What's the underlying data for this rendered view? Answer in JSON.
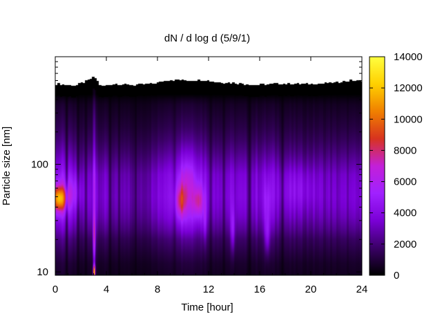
{
  "chart_data": {
    "type": "heatmap",
    "title": "dN / d log d (5/9/1)",
    "xlabel": "Time [hour]",
    "ylabel": "Particle size [nm]",
    "x_range": [
      0,
      24
    ],
    "x_ticks": [
      0,
      4,
      8,
      12,
      16,
      20,
      24
    ],
    "y_scale": "log",
    "y_range": [
      9.3,
      1000
    ],
    "y_ticks": [
      10,
      100
    ],
    "colorbar": {
      "range": [
        0,
        14000
      ],
      "ticks": [
        0,
        2000,
        4000,
        6000,
        8000,
        10000,
        12000,
        14000
      ],
      "colormap": [
        "#000000",
        "#3a0066",
        "#7a00d6",
        "#a021ff",
        "#c320d8",
        "#d7331f",
        "#f08000",
        "#ffd000",
        "#ffff40"
      ]
    },
    "grid": false,
    "no_data_color": "#ffffff",
    "upper_cutoff_nm": {
      "hours": [
        0,
        1.5,
        2.5,
        3.0,
        3.5,
        4.5,
        6.0,
        7.5,
        8.5,
        9.5,
        10.5,
        11.5,
        12.5,
        14.0,
        15.5,
        17.0,
        18.5,
        20.0,
        21.5,
        23.0,
        24.0
      ],
      "values": [
        560,
        540,
        600,
        650,
        530,
        560,
        545,
        560,
        600,
        610,
        600,
        610,
        580,
        570,
        545,
        560,
        560,
        560,
        570,
        600,
        600
      ]
    },
    "bulk_rows": {
      "diameters_nm": [
        9.3,
        12,
        15,
        20,
        25,
        32,
        40,
        50,
        63,
        80,
        100,
        130,
        170,
        220,
        290,
        360,
        400,
        450,
        700
      ],
      "values": [
        600,
        800,
        1200,
        1800,
        2600,
        3300,
        3700,
        3900,
        3800,
        3600,
        3000,
        2300,
        1700,
        1250,
        900,
        650,
        400,
        0,
        0
      ]
    },
    "time_modulation": {
      "hours": [
        0,
        1,
        2,
        3,
        4,
        5,
        6,
        7,
        8,
        9,
        10,
        11,
        12,
        13,
        14,
        15,
        16,
        17,
        18,
        19,
        20,
        21,
        22,
        23,
        24
      ],
      "factors": [
        1.3,
        1.15,
        0.85,
        1.0,
        0.85,
        0.8,
        0.7,
        0.75,
        0.9,
        1.3,
        1.4,
        1.4,
        1.05,
        1.0,
        0.95,
        0.9,
        1.0,
        1.0,
        0.9,
        0.85,
        0.85,
        0.85,
        0.85,
        0.85,
        0.85
      ]
    },
    "features": [
      {
        "hour": 0.3,
        "d_nm": 48,
        "peak": 7200,
        "dt": 0.6,
        "dlog": 0.12
      },
      {
        "hour": 1.5,
        "d_nm": 55,
        "peak": 1500,
        "dt": 0.6,
        "dlog": 0.15
      },
      {
        "hour": 3.05,
        "d_nm": 10,
        "peak": 11000,
        "dt": 0.08,
        "dlog": 0.06
      },
      {
        "hour": 3.05,
        "d_nm": 20,
        "peak": 5500,
        "dt": 0.1,
        "dlog": 0.25
      },
      {
        "hour": 3.05,
        "d_nm": 70,
        "peak": 2600,
        "dt": 0.1,
        "dlog": 0.35
      },
      {
        "hour": 3.05,
        "d_nm": 250,
        "peak": 1200,
        "dt": 0.12,
        "dlog": 0.3
      },
      {
        "hour": 9.8,
        "d_nm": 45,
        "peak": 3000,
        "dt": 0.4,
        "dlog": 0.15
      },
      {
        "hour": 10.3,
        "d_nm": 60,
        "peak": 1800,
        "dt": 0.6,
        "dlog": 0.3
      },
      {
        "hour": 11.2,
        "d_nm": 45,
        "peak": 3000,
        "dt": 0.4,
        "dlog": 0.15
      },
      {
        "hour": 11.7,
        "d_nm": 30,
        "peak": 1600,
        "dt": 0.15,
        "dlog": 0.2
      },
      {
        "hour": 13.9,
        "d_nm": 24,
        "peak": 2200,
        "dt": 0.18,
        "dlog": 0.2
      },
      {
        "hour": 16.6,
        "d_nm": 22,
        "peak": 2400,
        "dt": 0.2,
        "dlog": 0.18
      },
      {
        "hour": 16.6,
        "d_nm": 45,
        "peak": 1200,
        "dt": 0.25,
        "dlog": 0.2
      },
      {
        "hour": 19.0,
        "d_nm": 60,
        "peak": 900,
        "dt": 1.5,
        "dlog": 0.2
      }
    ],
    "dark_streaks_hours": [
      0.9,
      1.8,
      2.4,
      4.3,
      5.0,
      6.3,
      9.3,
      12.2,
      13.2,
      15.2,
      17.8
    ]
  }
}
